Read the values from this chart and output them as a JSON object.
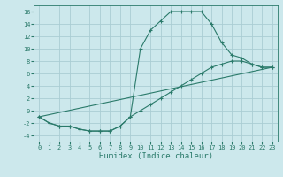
{
  "title": "",
  "xlabel": "Humidex (Indice chaleur)",
  "ylabel": "",
  "bg_color": "#cce8ec",
  "grid_color": "#aacdd4",
  "line_color": "#2a7a6a",
  "xlim": [
    -0.5,
    23.5
  ],
  "ylim": [
    -5,
    17
  ],
  "yticks": [
    -4,
    -2,
    0,
    2,
    4,
    6,
    8,
    10,
    12,
    14,
    16
  ],
  "xticks": [
    0,
    1,
    2,
    3,
    4,
    5,
    6,
    7,
    8,
    9,
    10,
    11,
    12,
    13,
    14,
    15,
    16,
    17,
    18,
    19,
    20,
    21,
    22,
    23
  ],
  "line1_x": [
    0,
    1,
    2,
    3,
    4,
    5,
    6,
    7,
    8,
    9,
    10,
    11,
    12,
    13,
    14,
    15,
    16,
    17,
    18,
    19,
    20,
    21,
    22,
    23
  ],
  "line1_y": [
    -1,
    -2,
    -2.5,
    -2.5,
    -3,
    -3.3,
    -3.3,
    -3.3,
    -2.5,
    -1,
    10,
    13,
    14.5,
    16,
    16,
    16,
    16,
    14,
    11,
    9,
    8.5,
    7.5,
    7,
    7
  ],
  "line2_x": [
    0,
    1,
    2,
    3,
    4,
    5,
    6,
    7,
    8,
    9,
    10,
    11,
    12,
    13,
    14,
    15,
    16,
    17,
    18,
    19,
    20,
    21,
    22,
    23
  ],
  "line2_y": [
    -1,
    -2,
    -2.5,
    -2.5,
    -3,
    -3.3,
    -3.3,
    -3.3,
    -2.5,
    -1,
    0,
    1,
    2,
    3,
    4,
    5,
    6,
    7,
    7.5,
    8,
    8,
    7.5,
    7,
    7
  ],
  "line3_x": [
    0,
    23
  ],
  "line3_y": [
    -1,
    7
  ]
}
